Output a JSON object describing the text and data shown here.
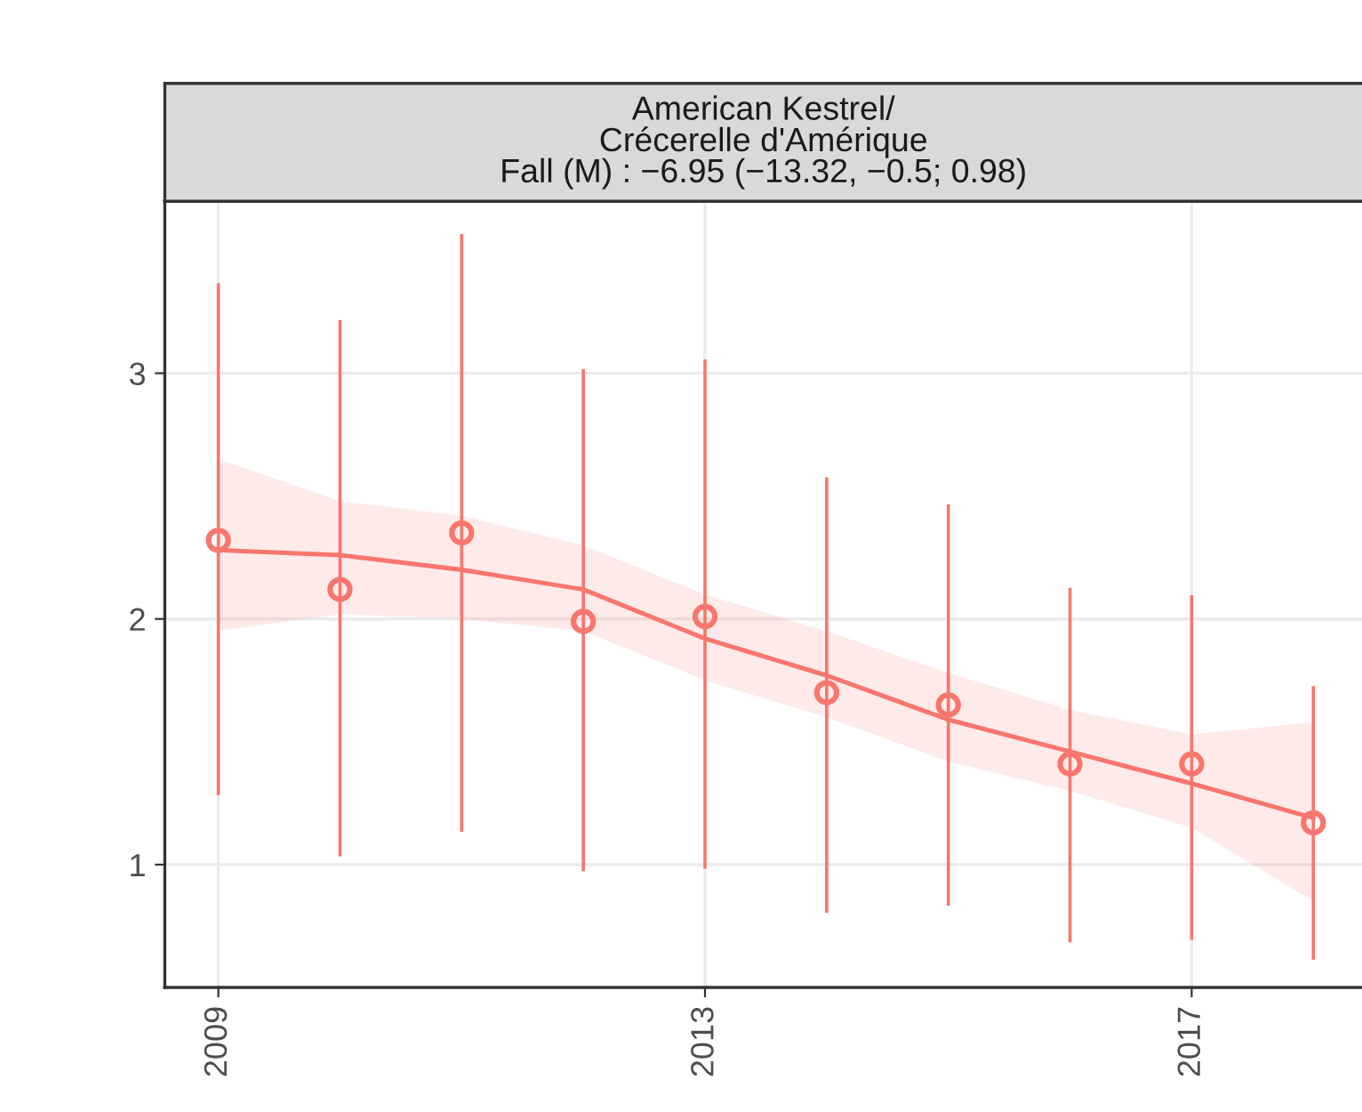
{
  "chart_data": {
    "type": "line",
    "title": "American Kestrel/\nCrécerelle d'Amérique\nFall (M) : −6.95 (−13.32, −0.5; 0.98)",
    "xlim": [
      2008.56,
      2018.4
    ],
    "xticks": [
      2009,
      2013,
      2017
    ],
    "ylim": [
      0.5,
      3.7
    ],
    "yticks": [
      1,
      2,
      3
    ],
    "grid": true,
    "series": [
      {
        "type": "scatter",
        "color": "#f8766d",
        "marker": "circle",
        "x": [
          2009,
          2010,
          2011,
          2012,
          2013,
          2014,
          2015,
          2016,
          2017,
          2018
        ],
        "values": [
          2.32,
          2.12,
          2.35,
          1.99,
          2.01,
          1.7,
          1.65,
          1.41,
          1.41,
          1.17
        ],
        "errors": [
          [
            1.29,
            3.36
          ],
          [
            1.04,
            3.21
          ],
          [
            1.14,
            3.56
          ],
          [
            0.98,
            3.01
          ],
          [
            0.99,
            3.05
          ],
          [
            0.81,
            2.57
          ],
          [
            0.84,
            2.46
          ],
          [
            0.69,
            2.12
          ],
          [
            0.7,
            2.09
          ],
          [
            0.62,
            1.72
          ]
        ]
      },
      {
        "color": "#f8766d",
        "x": [
          2009,
          2010,
          2011,
          2012,
          2013,
          2014,
          2015,
          2016,
          2017,
          2018
        ],
        "values": [
          2.28,
          2.26,
          2.2,
          2.12,
          1.92,
          1.77,
          1.59,
          1.46,
          1.33,
          1.19
        ],
        "lower": [
          1.95,
          2.02,
          2.0,
          1.95,
          1.75,
          1.6,
          1.42,
          1.3,
          1.15,
          0.85
        ],
        "upper": [
          2.65,
          2.48,
          2.42,
          2.3,
          2.1,
          1.95,
          1.78,
          1.63,
          1.53,
          1.58
        ]
      }
    ]
  }
}
